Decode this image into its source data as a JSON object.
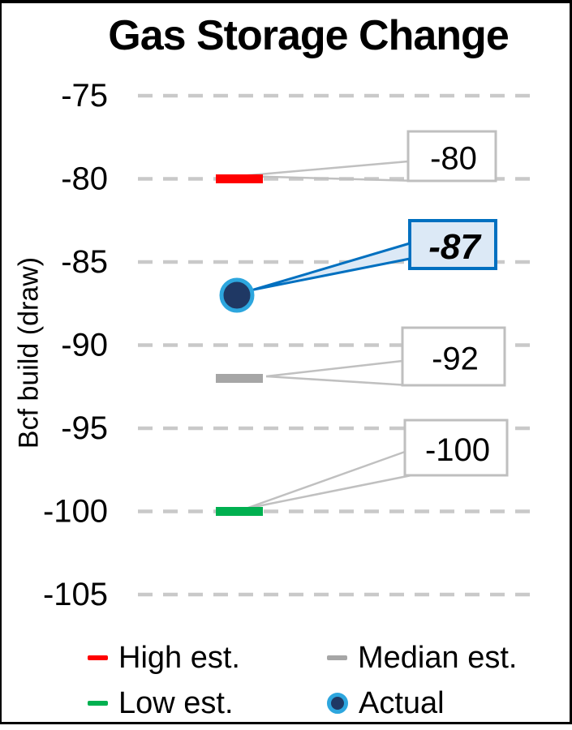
{
  "title": "Gas Storage Change",
  "colors": {
    "high": "#FF0000",
    "median": "#A6A6A6",
    "low": "#00B050",
    "actual_fill": "#1F3864",
    "actual_ring": "#2DA6DE",
    "callout_blue_border": "#0070C0",
    "callout_blue_fill": "#DCE9F6",
    "callout_gray_border": "#BFBFBF",
    "gridline": "#C9C9C9",
    "leader_gray": "#C0C0C0",
    "text": "#000000"
  },
  "chart_data": {
    "type": "scatter",
    "title": "Gas Storage Change",
    "xlabel": "",
    "ylabel": "Bcf build (draw)",
    "ylim": [
      -105,
      -75
    ],
    "yticks": [
      -75,
      -80,
      -85,
      -90,
      -95,
      -100,
      -105
    ],
    "grid": "horizontal-dashed",
    "legend_position": "bottom",
    "series": [
      {
        "name": "High est.",
        "value": -80,
        "marker": "dash",
        "color_key": "high",
        "callout_label": "-80",
        "callout_style": "plain"
      },
      {
        "name": "Actual",
        "value": -87,
        "marker": "circle",
        "color_key": "actual_fill",
        "callout_label": "-87",
        "callout_style": "highlight"
      },
      {
        "name": "Median est.",
        "value": -92,
        "marker": "dash",
        "color_key": "median",
        "callout_label": "-92",
        "callout_style": "plain"
      },
      {
        "name": "Low est.",
        "value": -100,
        "marker": "dash",
        "color_key": "low",
        "callout_label": "-100",
        "callout_style": "plain"
      }
    ]
  },
  "legend": {
    "items": [
      {
        "label": "High est.",
        "marker": "dash",
        "color_key": "high"
      },
      {
        "label": "Median est.",
        "marker": "dash",
        "color_key": "median"
      },
      {
        "label": "Low est.",
        "marker": "dash",
        "color_key": "low"
      },
      {
        "label": "Actual",
        "marker": "circle",
        "color_key": "actual_fill"
      }
    ]
  }
}
